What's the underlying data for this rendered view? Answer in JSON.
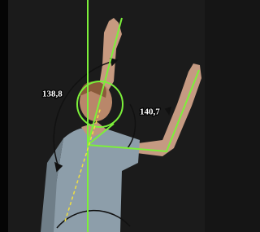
{
  "angle_labels": [
    "138,8",
    "140,7"
  ]
}
